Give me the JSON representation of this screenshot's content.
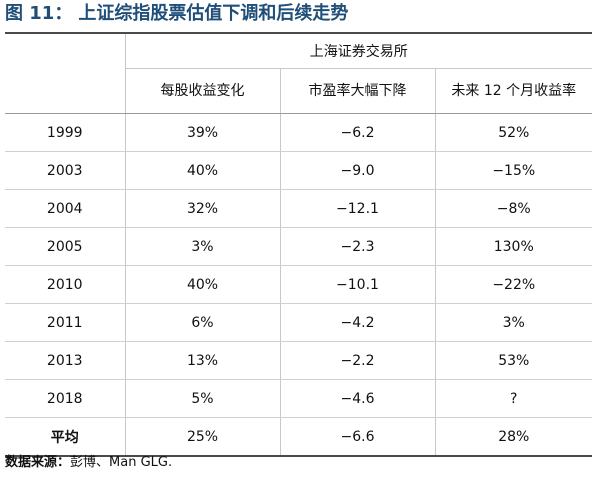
{
  "figure": {
    "label": "图 11：",
    "title": "上证综指股票估值下调和后续走势"
  },
  "table": {
    "group_header": "上海证券交易所",
    "columns": [
      "每股收益变化",
      "市盈率大幅下降",
      "未来 12 个月收益率"
    ],
    "rows": [
      {
        "year": "1999",
        "eps": "39%",
        "pe": "−6.2",
        "ret": "52%"
      },
      {
        "year": "2003",
        "eps": "40%",
        "pe": "−9.0",
        "ret": "−15%"
      },
      {
        "year": "2004",
        "eps": "32%",
        "pe": "−12.1",
        "ret": "−8%"
      },
      {
        "year": "2005",
        "eps": "3%",
        "pe": "−2.3",
        "ret": "130%"
      },
      {
        "year": "2010",
        "eps": "40%",
        "pe": "−10.1",
        "ret": "−22%"
      },
      {
        "year": "2011",
        "eps": "6%",
        "pe": "−4.2",
        "ret": "3%"
      },
      {
        "year": "2013",
        "eps": "13%",
        "pe": "−2.2",
        "ret": "53%"
      },
      {
        "year": "2018",
        "eps": "5%",
        "pe": "−4.6",
        "ret": "?"
      },
      {
        "year": "平均",
        "eps": "25%",
        "pe": "−6.6",
        "ret": "28%"
      }
    ]
  },
  "source": {
    "label": "数据来源：",
    "text": "彭博、Man GLG."
  },
  "colors": {
    "title": "#1f4e79",
    "rule": "#4a4a4a"
  }
}
